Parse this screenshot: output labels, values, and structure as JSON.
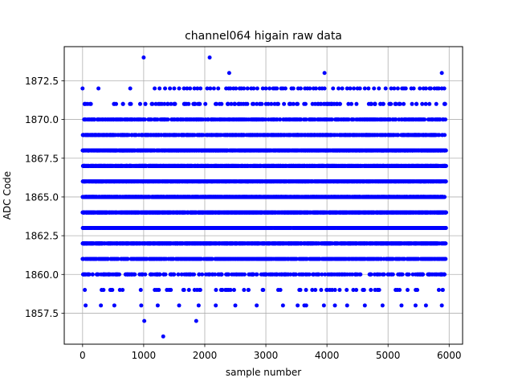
{
  "chart_data": {
    "type": "scatter",
    "title": "channel064 higain raw data",
    "xlabel": "sample number",
    "ylabel": "ADC Code",
    "xlim": [
      -300,
      6220
    ],
    "ylim": [
      1855.5,
      1874.7
    ],
    "x_ticks": [
      0,
      1000,
      2000,
      3000,
      4000,
      5000,
      6000
    ],
    "x_tick_labels": [
      "0",
      "1000",
      "2000",
      "3000",
      "4000",
      "5000",
      "6000"
    ],
    "y_ticks": [
      1857.5,
      1860.0,
      1862.5,
      1865.0,
      1867.5,
      1870.0,
      1872.5
    ],
    "y_tick_labels": [
      "1857.5",
      "1860.0",
      "1862.5",
      "1865.0",
      "1867.5",
      "1870.0",
      "1872.5"
    ],
    "grid": true,
    "marker_color": "#0000ff",
    "series": [
      {
        "x": [
          0,
          260,
          780,
          1180,
          1260,
          1350,
          1430,
          1500,
          1580,
          1660,
          1710,
          1760,
          1830,
          1880,
          1930,
          2040,
          2090,
          2150,
          2220,
          2350,
          2390,
          2420,
          2470,
          2510,
          2570,
          2600,
          2640,
          2700,
          2760,
          2800,
          2860,
          2950,
          3000,
          3060,
          3120,
          3150,
          3180,
          3250,
          3280,
          3320,
          3420,
          3450,
          3530,
          3570,
          3640,
          3680,
          3720,
          3780,
          3820,
          3880,
          3920,
          3960,
          4100,
          4190,
          4250,
          4330,
          4380,
          4440,
          4500,
          4540,
          4620,
          4680,
          4770,
          4850,
          4960,
          5050,
          5100,
          5160,
          5230,
          5260,
          5290,
          5380,
          5420,
          5520,
          5580,
          5620,
          5680,
          5700,
          5760,
          5800,
          5830,
          5880,
          5920
        ],
        "y": [
          1872,
          1872,
          1872,
          1872,
          1872,
          1872,
          1872,
          1872,
          1872,
          1872,
          1872,
          1872,
          1872,
          1872,
          1872,
          1872,
          1872,
          1872,
          1872,
          1872,
          1872,
          1872,
          1872,
          1872,
          1872,
          1872,
          1872,
          1872,
          1872,
          1872,
          1872,
          1872,
          1872,
          1872,
          1872,
          1872,
          1872,
          1872,
          1872,
          1872,
          1872,
          1872,
          1872,
          1872,
          1872,
          1872,
          1872,
          1872,
          1872,
          1872,
          1872,
          1872,
          1872,
          1872,
          1872,
          1872,
          1872,
          1872,
          1872,
          1872,
          1872,
          1872,
          1872,
          1872,
          1872,
          1872,
          1872,
          1872,
          1872,
          1872,
          1872,
          1872,
          1872,
          1872,
          1872,
          1872,
          1872,
          1872,
          1872,
          1872,
          1872,
          1872,
          1872
        ]
      },
      {
        "x": [
          1000,
          2080,
          2400,
          3960,
          5880,
          50,
          300,
          520,
          960,
          1230,
          1580,
          1900,
          2180,
          2500,
          2850,
          3280,
          3520,
          3630,
          3660,
          3950,
          4130,
          4330,
          4620,
          4910,
          5220,
          5450,
          5620,
          5880,
          1010,
          1320,
          1860
        ],
        "y": [
          1874,
          1874,
          1873,
          1873,
          1873,
          1858,
          1858,
          1858,
          1858,
          1858,
          1858,
          1858,
          1858,
          1858,
          1858,
          1858,
          1858,
          1858,
          1858,
          1858,
          1858,
          1858,
          1858,
          1858,
          1858,
          1858,
          1858,
          1858,
          1857,
          1856,
          1857
        ]
      }
    ],
    "dense_series": {
      "x_range": [
        0,
        5950
      ],
      "levels": [
        {
          "y": 1871,
          "count": 140
        },
        {
          "y": 1870,
          "count": 420
        },
        {
          "y": 1869,
          "count": 700
        },
        {
          "y": 1868,
          "count": 1400
        },
        {
          "y": 1867,
          "count": 1500
        },
        {
          "y": 1866,
          "count": 1500
        },
        {
          "y": 1865,
          "count": 1500
        },
        {
          "y": 1864,
          "count": 1500
        },
        {
          "y": 1863,
          "count": 1500
        },
        {
          "y": 1862,
          "count": 1300
        },
        {
          "y": 1861,
          "count": 600
        },
        {
          "y": 1860,
          "count": 300
        },
        {
          "y": 1859,
          "count": 70
        }
      ]
    }
  }
}
